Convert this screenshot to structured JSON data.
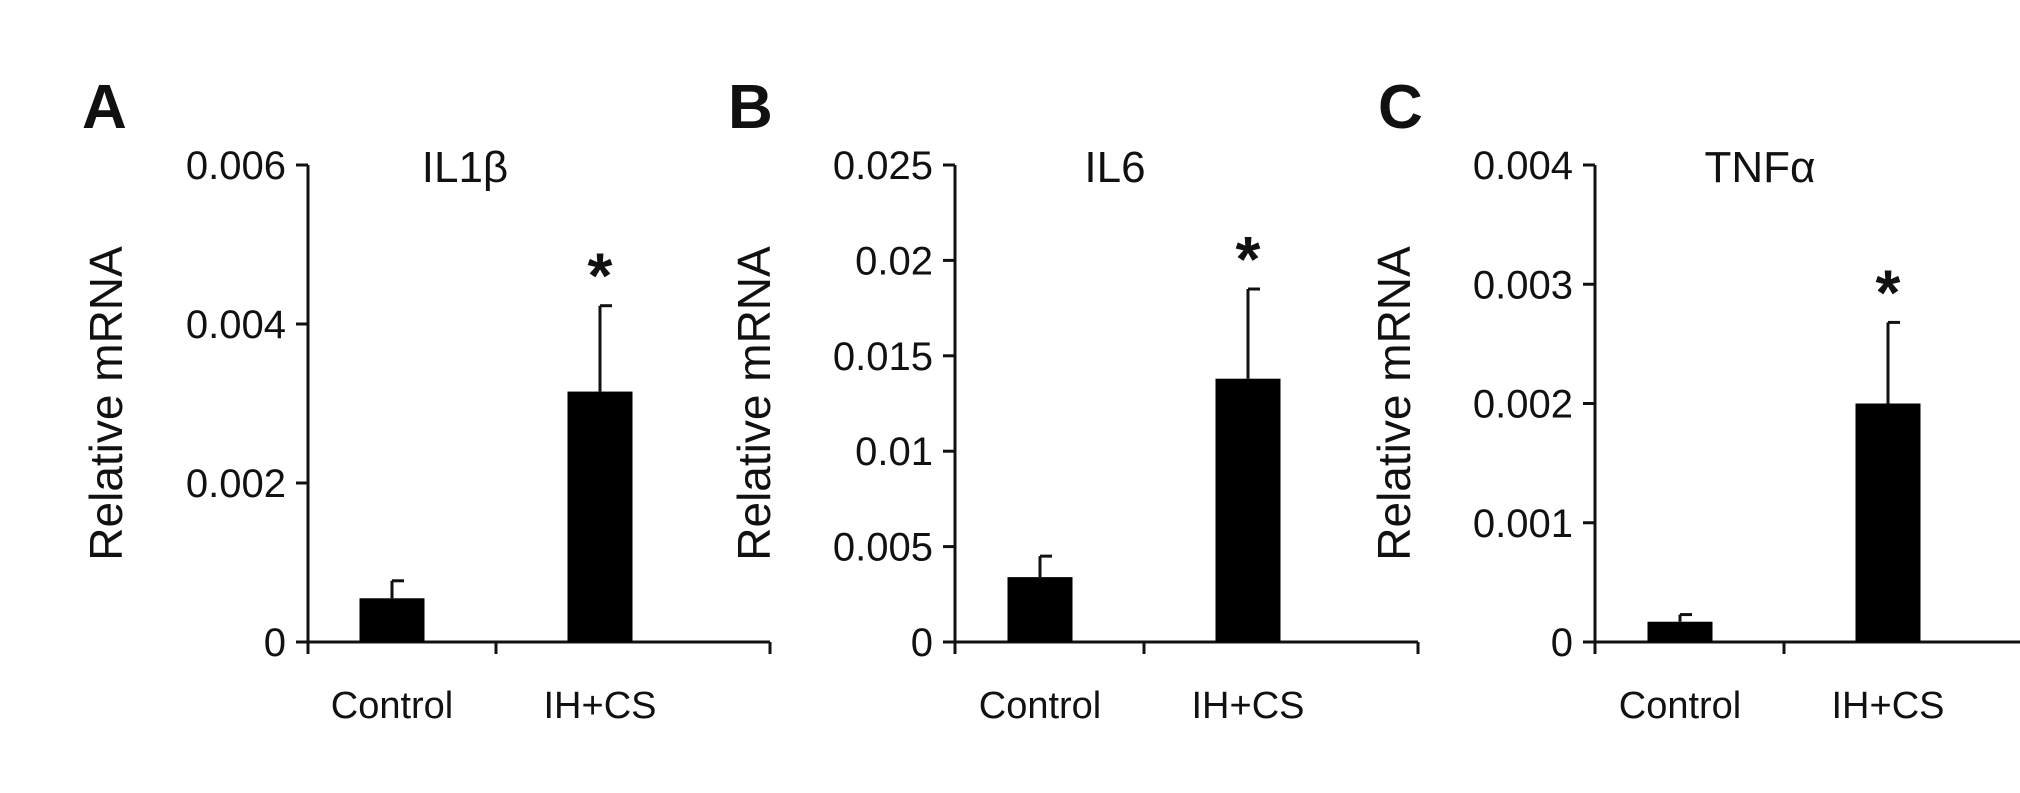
{
  "chart_data": [
    {
      "type": "bar",
      "panel_label": "A",
      "title": "IL1β",
      "ylabel": "Relative mRNA",
      "xlabel": "",
      "categories": [
        "Control",
        "IH+CS"
      ],
      "values": [
        0.00055,
        0.00315
      ],
      "errors": [
        0.00022,
        0.00108
      ],
      "significance": [
        "",
        "*"
      ],
      "ylim": [
        0,
        0.006
      ],
      "yticks": [
        0,
        0.002,
        0.004,
        0.006
      ],
      "ytick_labels": [
        "0",
        "0.002",
        "0.004",
        "0.006"
      ],
      "grid": false,
      "bar_color": "#000000"
    },
    {
      "type": "bar",
      "panel_label": "B",
      "title": "IL6",
      "ylabel": "Relative mRNA",
      "xlabel": "",
      "categories": [
        "Control",
        "IH+CS"
      ],
      "values": [
        0.0034,
        0.0138
      ],
      "errors": [
        0.0011,
        0.0047
      ],
      "significance": [
        "",
        "*"
      ],
      "ylim": [
        0,
        0.025
      ],
      "yticks": [
        0,
        0.005,
        0.01,
        0.015,
        0.02,
        0.025
      ],
      "ytick_labels": [
        "0",
        "0.005",
        "0.01",
        "0.015",
        "0.02",
        "0.025"
      ],
      "grid": false,
      "bar_color": "#000000"
    },
    {
      "type": "bar",
      "panel_label": "C",
      "title": "TNFα",
      "ylabel": "Relative mRNA",
      "xlabel": "",
      "categories": [
        "Control",
        "IH+CS"
      ],
      "values": [
        0.00017,
        0.002
      ],
      "errors": [
        6e-05,
        0.00068
      ],
      "significance": [
        "",
        "*"
      ],
      "ylim": [
        0,
        0.004
      ],
      "yticks": [
        0,
        0.001,
        0.002,
        0.003,
        0.004
      ],
      "ytick_labels": [
        "0",
        "0.001",
        "0.002",
        "0.003",
        "0.004"
      ],
      "grid": false,
      "bar_color": "#000000"
    }
  ]
}
